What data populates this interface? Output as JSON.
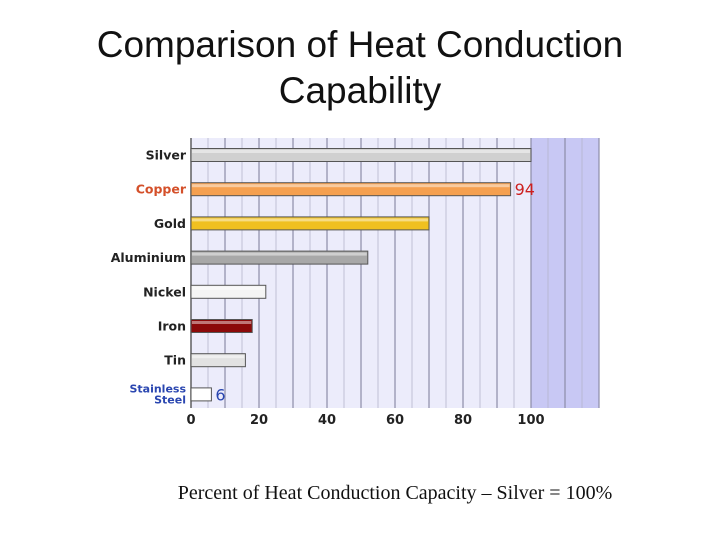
{
  "title": {
    "line1": "Comparison of Heat Conduction",
    "line2": "Capability"
  },
  "caption": "Percent of Heat Conduction Capacity – Silver = 100%",
  "chart_data": {
    "type": "bar",
    "orientation": "horizontal",
    "categories": [
      "Silver",
      "Copper",
      "Gold",
      "Aluminium",
      "Nickel",
      "Iron",
      "Tin",
      "Stainless Steel"
    ],
    "category_label_lines": [
      [
        "Silver"
      ],
      [
        "Copper"
      ],
      [
        "Gold"
      ],
      [
        "Aluminium"
      ],
      [
        "Nickel"
      ],
      [
        "Iron"
      ],
      [
        "Tin"
      ],
      [
        "Stainless",
        "Steel"
      ]
    ],
    "values": [
      100,
      94,
      70,
      52,
      22,
      18,
      16,
      6
    ],
    "bar_colors": [
      "#d0d0d0",
      "#f5a050",
      "#f0c020",
      "#a8a8a8",
      "#f4f4f4",
      "#8b0a0a",
      "#e2e2e2",
      "#ffffff"
    ],
    "label_colors": [
      "#222222",
      "#d4502a",
      "#222222",
      "#222222",
      "#222222",
      "#222222",
      "#222222",
      "#2a46b0"
    ],
    "data_labels": [
      {
        "category": "Copper",
        "text": "94",
        "color": "#cc2020"
      },
      {
        "category": "Stainless Steel",
        "text": "6",
        "color": "#2a46b0"
      }
    ],
    "x_ticks": [
      0,
      20,
      40,
      60,
      80,
      100
    ],
    "xlim": [
      0,
      120
    ],
    "grid": true,
    "plot_background": "#ececfb",
    "highlight_band_background": "#c8c8f4",
    "xlabel": "",
    "ylabel": ""
  }
}
